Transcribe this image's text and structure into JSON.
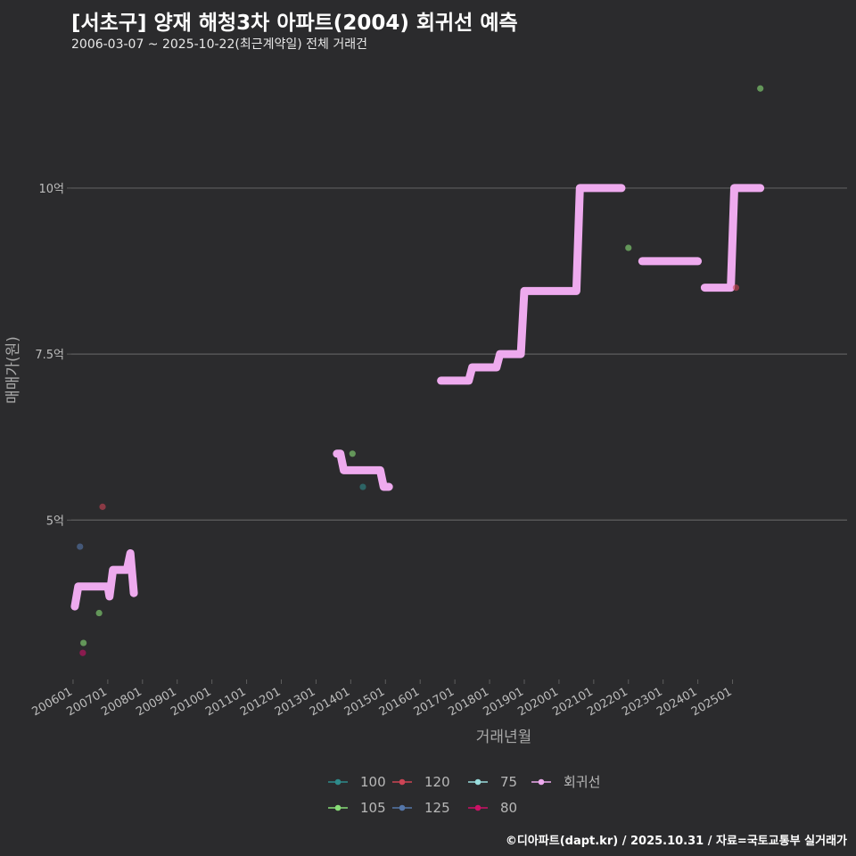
{
  "header": {
    "title": "[서초구] 양재 해청3차 아파트(2004) 회귀선 예측",
    "subtitle": "2006-03-07 ~ 2025-10-22(최근계약일) 전체 거래건"
  },
  "footer": {
    "credit": "©디아파트(dapt.kr) / 2025.10.31 / 자료=국토교통부 실거래가"
  },
  "colors": {
    "background": "#2b2b2d",
    "grid": "#5e5e5e",
    "regression": "#eeaaee",
    "s100": "#2e8b8b",
    "s105": "#88dd77",
    "s120": "#cc4455",
    "s125": "#5577aa",
    "s75": "#99dddd",
    "s80": "#cc1166"
  },
  "chart_data": {
    "type": "scatter+step-line",
    "title": "[서초구] 양재 해청3차 아파트(2004) 회귀선 예측",
    "xlabel": "거래년월",
    "ylabel": "매매가(원)",
    "x_ticks": [
      "200601",
      "200701",
      "200801",
      "200901",
      "201001",
      "201101",
      "201201",
      "201301",
      "201401",
      "201501",
      "201601",
      "201701",
      "201801",
      "201901",
      "202001",
      "202101",
      "202201",
      "202301",
      "202401",
      "202501"
    ],
    "y_ticks": [
      {
        "value": 5.0,
        "label": "5억"
      },
      {
        "value": 7.5,
        "label": "7.5억"
      },
      {
        "value": 10.0,
        "label": "10억"
      }
    ],
    "xlim": [
      2005.95,
      2028.3
    ],
    "ylim": [
      2.6,
      12.0
    ],
    "y_unit": "억",
    "legend": {
      "position": "bottom",
      "items": [
        {
          "key": "100",
          "label": "100",
          "color": "#2e8b8b"
        },
        {
          "key": "120",
          "label": "120",
          "color": "#cc4455"
        },
        {
          "key": "75",
          "label": "75",
          "color": "#99dddd"
        },
        {
          "key": "regression",
          "label": "회귀선",
          "color": "#eeaaee"
        },
        {
          "key": "105",
          "label": "105",
          "color": "#88dd77"
        },
        {
          "key": "125",
          "label": "125",
          "color": "#5577aa"
        },
        {
          "key": "80",
          "label": "80",
          "color": "#cc1166"
        }
      ]
    },
    "points": [
      {
        "series": "125",
        "x": 2006.2,
        "y": 4.6
      },
      {
        "series": "105",
        "x": 2006.3,
        "y": 3.15
      },
      {
        "series": "80",
        "x": 2006.28,
        "y": 3.0
      },
      {
        "series": "120",
        "x": 2006.85,
        "y": 5.2
      },
      {
        "series": "105",
        "x": 2006.75,
        "y": 3.6
      },
      {
        "series": "105",
        "x": 2014.05,
        "y": 6.0
      },
      {
        "series": "100",
        "x": 2014.35,
        "y": 5.5
      },
      {
        "series": "105",
        "x": 2022.0,
        "y": 9.1
      },
      {
        "series": "120",
        "x": 2025.1,
        "y": 8.5
      },
      {
        "series": "105",
        "x": 2025.8,
        "y": 11.5
      }
    ],
    "regression_segments": [
      [
        [
          2006.05,
          3.7
        ],
        [
          2006.15,
          4.0
        ],
        [
          2007.0,
          4.0
        ],
        [
          2007.05,
          3.85
        ],
        [
          2007.15,
          4.25
        ],
        [
          2007.55,
          4.25
        ],
        [
          2007.65,
          4.5
        ],
        [
          2007.75,
          3.9
        ]
      ],
      [
        [
          2013.6,
          6.0
        ],
        [
          2013.7,
          6.0
        ],
        [
          2013.8,
          5.75
        ],
        [
          2014.85,
          5.75
        ],
        [
          2014.95,
          5.5
        ],
        [
          2015.1,
          5.5
        ]
      ],
      [
        [
          2016.6,
          7.1
        ],
        [
          2017.4,
          7.1
        ],
        [
          2017.5,
          7.3
        ],
        [
          2018.2,
          7.3
        ],
        [
          2018.3,
          7.5
        ],
        [
          2018.9,
          7.5
        ],
        [
          2019.0,
          8.45
        ],
        [
          2020.5,
          8.45
        ],
        [
          2020.6,
          10.0
        ],
        [
          2021.8,
          10.0
        ]
      ],
      [
        [
          2022.4,
          8.9
        ],
        [
          2024.0,
          8.9
        ]
      ],
      [
        [
          2024.2,
          8.5
        ],
        [
          2024.95,
          8.5
        ],
        [
          2025.05,
          10.0
        ],
        [
          2025.8,
          10.0
        ]
      ]
    ]
  }
}
